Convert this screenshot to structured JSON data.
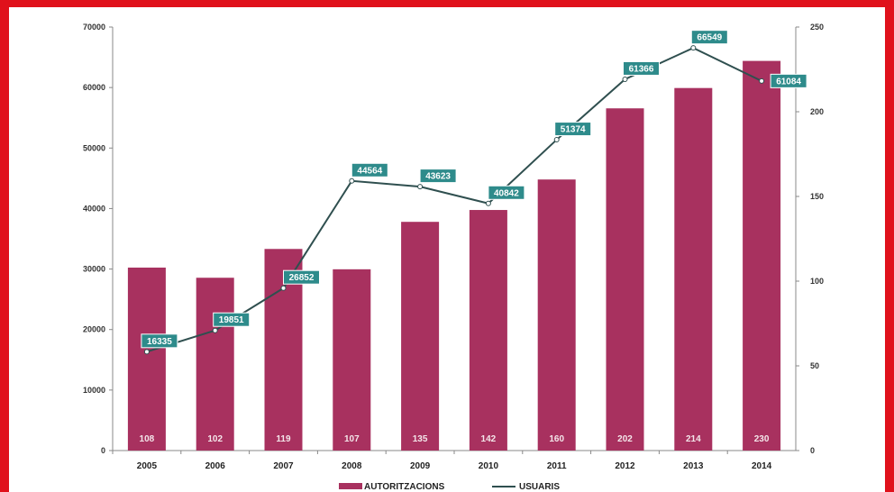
{
  "chart_data": {
    "type": "bar",
    "categories": [
      "2005",
      "2006",
      "2007",
      "2008",
      "2009",
      "2010",
      "2011",
      "2012",
      "2013",
      "2014"
    ],
    "series": [
      {
        "name": "AUTORITZACIONS",
        "type": "bar",
        "axis": "right",
        "values": [
          108,
          102,
          119,
          107,
          135,
          142,
          160,
          202,
          214,
          230
        ]
      },
      {
        "name": "USUARIS",
        "type": "line",
        "axis": "left",
        "values": [
          16335,
          19851,
          26852,
          44564,
          43623,
          40842,
          51374,
          61366,
          66549,
          61084
        ]
      }
    ],
    "left_axis": {
      "ylim": [
        0,
        70000
      ],
      "ticks": [
        "0",
        "10000",
        "20000",
        "30000",
        "40000",
        "50000",
        "60000",
        "70000"
      ]
    },
    "right_axis": {
      "ylim": [
        0,
        250
      ],
      "ticks": [
        "0",
        "50",
        "100",
        "150",
        "200",
        "250"
      ]
    },
    "bar_labels": [
      "108",
      "102",
      "119",
      "107",
      "135",
      "142",
      "160",
      "202",
      "214",
      "230"
    ],
    "line_labels": [
      "16335",
      "19851",
      "26852",
      "44564",
      "43623",
      "40842",
      "51374",
      "61366",
      "66549",
      "61084"
    ],
    "legend": [
      "AUTORITZACIONS",
      "USUARIS"
    ],
    "legend_position": "bottom",
    "colors": {
      "bar": "#a8315f",
      "line": "#2f4f4f",
      "label_bg": "#2e8b8b",
      "frame": "#e0111b"
    },
    "grid": false
  }
}
